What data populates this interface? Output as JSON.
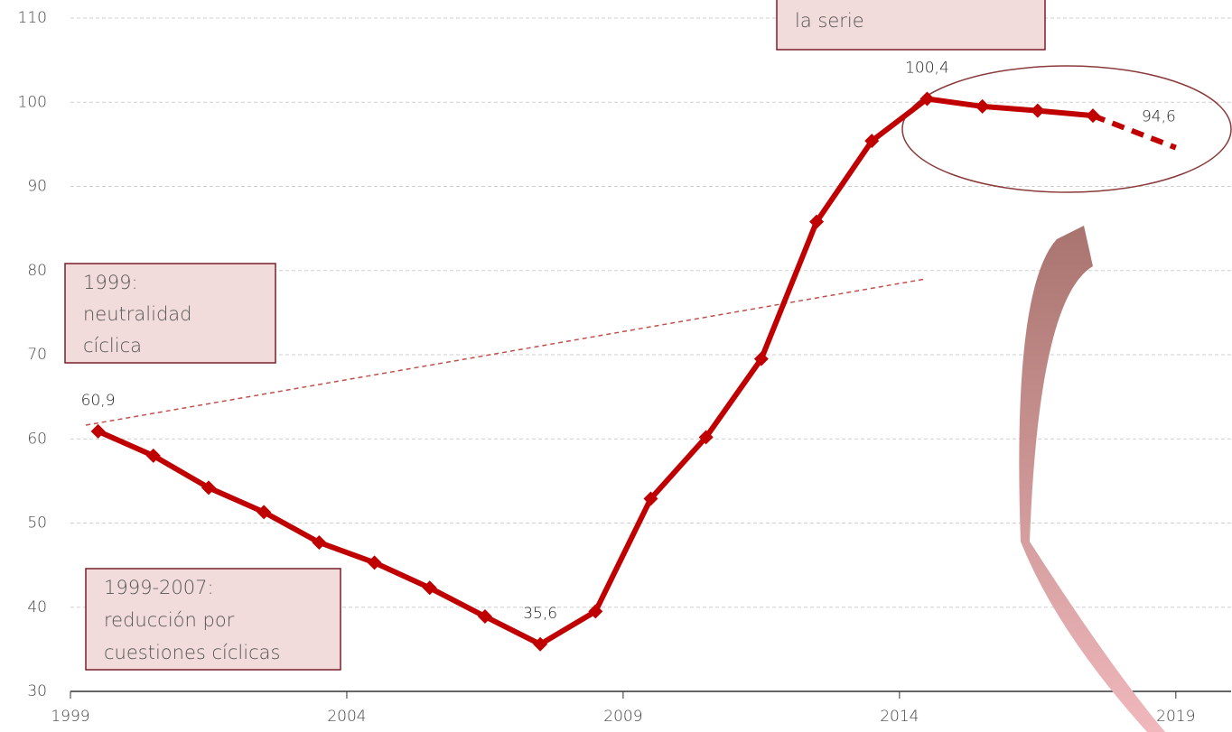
{
  "chart_data": {
    "type": "line",
    "x": [
      1999.5,
      2000.5,
      2001.5,
      2002.5,
      2003.5,
      2004.5,
      2005.5,
      2006.5,
      2007.5,
      2008.5,
      2009.5,
      2010.5,
      2011.5,
      2012.5,
      2013.5,
      2014.5,
      2015.5,
      2016.5,
      2017.5
    ],
    "series": [
      {
        "color": "#c00000",
        "values": [
          60.9,
          58.0,
          54.2,
          51.3,
          47.7,
          45.3,
          42.3,
          38.9,
          35.6,
          39.5,
          52.9,
          60.2,
          69.5,
          85.8,
          95.4,
          100.4,
          99.5,
          99.0,
          98.4
        ],
        "value_labels": [
          "60,9",
          null,
          null,
          null,
          null,
          null,
          null,
          null,
          "35,6",
          null,
          null,
          null,
          null,
          null,
          null,
          "100,4",
          null,
          null,
          null
        ]
      },
      {
        "color": "#c00000",
        "dashed": true,
        "x": [
          2017.5,
          2019
        ],
        "values": [
          98.4,
          94.6
        ],
        "value_labels": [
          null,
          "94,6"
        ]
      }
    ],
    "xlim": [
      1999,
      2020
    ],
    "xticks": [
      1999,
      2004,
      2009,
      2014,
      2019
    ],
    "ylim": [
      30,
      110
    ],
    "yticks": [
      30,
      40,
      50,
      60,
      70,
      80,
      90,
      100,
      110
    ],
    "grid": true,
    "annotations": [
      {
        "lines": [
          "la serie"
        ]
      },
      {
        "lines": [
          "1999:",
          "neutralidad",
          "cíclica"
        ]
      },
      {
        "lines": [
          "1999-2007:",
          "reducción por",
          "cuestiones cíclicas"
        ]
      }
    ]
  }
}
